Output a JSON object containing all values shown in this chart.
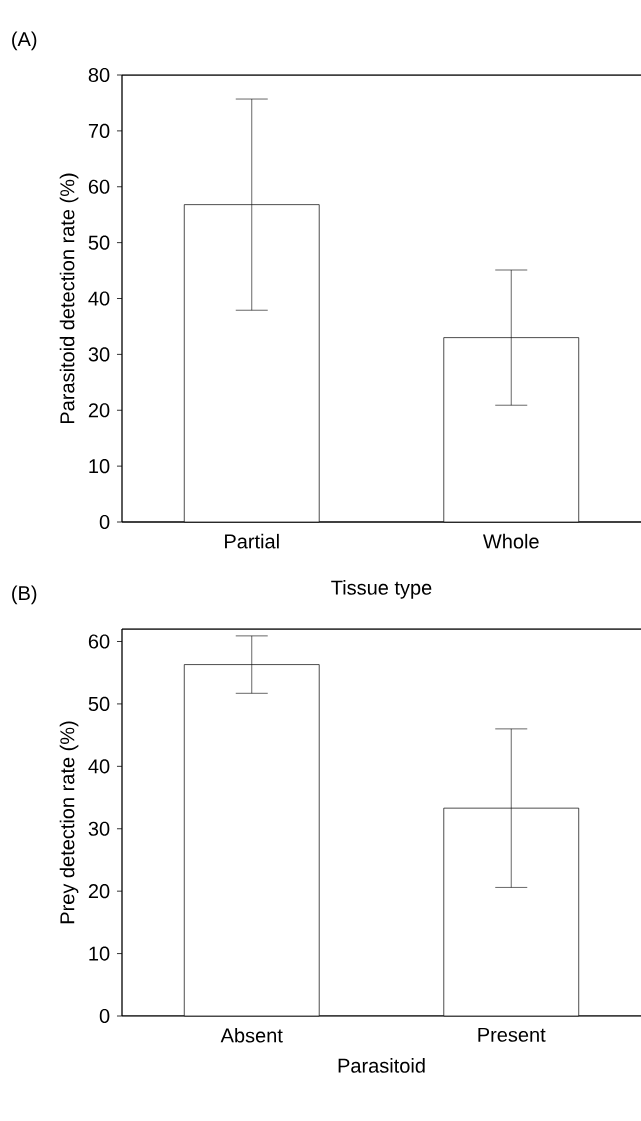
{
  "chart_data": [
    {
      "type": "bar",
      "annotations": [
        "(A)"
      ],
      "xlabel": "Tissue type",
      "ylabel": "Parasitoid detection rate (%)",
      "categories": [
        "Partial",
        "Whole"
      ],
      "values": [
        56.8,
        33.0
      ],
      "errors": [
        18.9,
        12.1
      ],
      "color": "#ffffff",
      "ylim": [
        0,
        80
      ],
      "yticks": [
        0,
        10,
        20,
        30,
        40,
        50,
        60,
        70,
        80
      ]
    },
    {
      "type": "bar",
      "annotations": [
        "(B)"
      ],
      "xlabel": "Parasitoid",
      "ylabel": "Prey detection rate (%)",
      "categories": [
        "Absent",
        "Present"
      ],
      "values": [
        56.3,
        33.3
      ],
      "errors": [
        4.6,
        12.7
      ],
      "color": "#ffffff",
      "ylim": [
        0,
        62
      ],
      "yticks": [
        0,
        10,
        20,
        30,
        40,
        50,
        60
      ]
    }
  ]
}
